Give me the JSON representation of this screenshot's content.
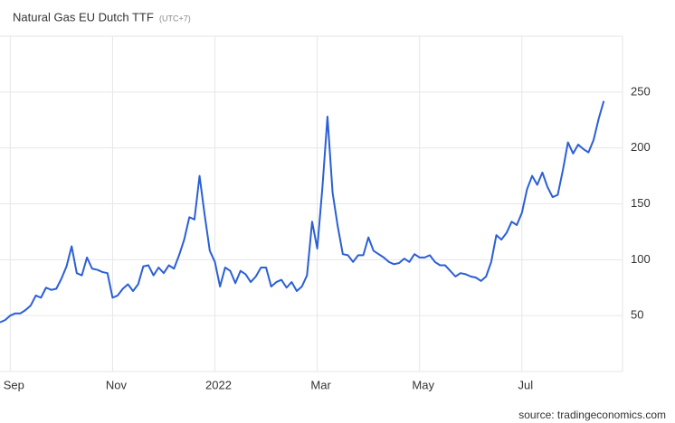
{
  "chart_data": {
    "type": "line",
    "title": "Natural Gas EU Dutch TTF",
    "subtitle": "(UTC+7)",
    "source": "source: tradingeconomics.com",
    "categories": [
      null,
      null,
      "Sep",
      null,
      null,
      null,
      null,
      null,
      null,
      null,
      null,
      null,
      null,
      null,
      null,
      null,
      null,
      null,
      null,
      null,
      null,
      null,
      "Nov",
      null,
      null,
      null,
      null,
      null,
      null,
      null,
      null,
      null,
      null,
      null,
      null,
      null,
      null,
      null,
      null,
      null,
      null,
      null,
      "2022",
      null,
      null,
      null,
      null,
      null,
      null,
      null,
      null,
      null,
      null,
      null,
      null,
      null,
      null,
      null,
      null,
      null,
      null,
      null,
      "Mar",
      null,
      null,
      null,
      null,
      null,
      null,
      null,
      null,
      null,
      null,
      null,
      null,
      null,
      null,
      null,
      null,
      null,
      null,
      null,
      "May",
      null,
      null,
      null,
      null,
      null,
      null,
      null,
      null,
      null,
      null,
      null,
      null,
      null,
      null,
      null,
      null,
      null,
      null,
      null,
      "Jul",
      null,
      null,
      null,
      null,
      null,
      null,
      null,
      null,
      null,
      null,
      null,
      null,
      null,
      null,
      null,
      null
    ],
    "series": [
      {
        "name": "Natural Gas EU Dutch TTF",
        "color": "#2a5fd6",
        "values": [
          44,
          46,
          50,
          52,
          52,
          55,
          59,
          68,
          66,
          75,
          73,
          74,
          83,
          94,
          112,
          88,
          86,
          102,
          92,
          91,
          89,
          88,
          66,
          68,
          74,
          78,
          72,
          78,
          94,
          95,
          86,
          93,
          88,
          95,
          92,
          104,
          118,
          138,
          136,
          175,
          140,
          108,
          98,
          76,
          93,
          90,
          79,
          90,
          87,
          80,
          85,
          93,
          93,
          76,
          80,
          82,
          75,
          80,
          72,
          76,
          86,
          134,
          110,
          164,
          228,
          160,
          130,
          105,
          104,
          98,
          104,
          104,
          120,
          108,
          105,
          102,
          98,
          96,
          97,
          101,
          98,
          105,
          102,
          102,
          104,
          98,
          95,
          95,
          90,
          85,
          88,
          87,
          85,
          84,
          81,
          85,
          98,
          122,
          118,
          124,
          134,
          131,
          142,
          163,
          175,
          167,
          178,
          165,
          156,
          158,
          180,
          205,
          195,
          203,
          199,
          196,
          207,
          226,
          242
        ]
      }
    ],
    "ylim": [
      0,
      300
    ],
    "yticks": [
      50,
      100,
      150,
      200,
      250
    ],
    "grid": true
  }
}
